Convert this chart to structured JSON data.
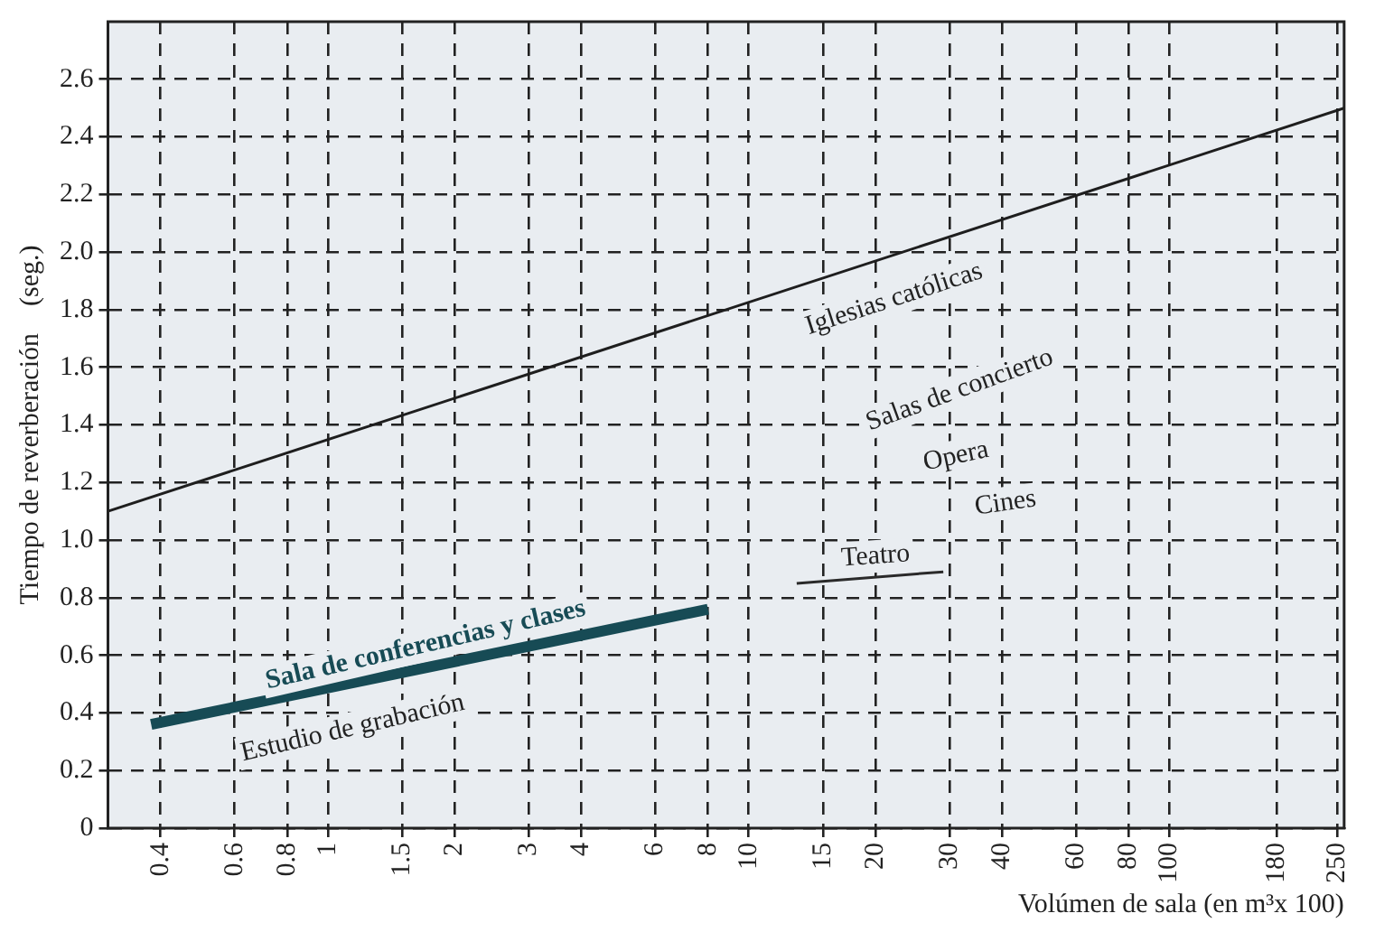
{
  "chart_data": {
    "type": "line",
    "xlabel": "Volúmen de sala (en m³x 100)",
    "ylabel": "Tiempo de reverberación    (seg.)",
    "log": "x",
    "xlim": [
      0.3,
      260
    ],
    "xticks": [
      0.4,
      0.6,
      0.8,
      1,
      1.5,
      2,
      3,
      4,
      6,
      8,
      10,
      15,
      20,
      30,
      40,
      60,
      80,
      100,
      180,
      250
    ],
    "ylim": [
      0,
      2.8
    ],
    "yticks": [
      0,
      0.2,
      0.4,
      0.6,
      0.8,
      {
        "value": 1,
        "label": "1.0"
      },
      1.2,
      1.4,
      1.6,
      1.8,
      {
        "value": 2,
        "label": "2.0"
      },
      2.2,
      2.4,
      2.6
    ],
    "grid": true,
    "legend": false,
    "marker": "none",
    "line_style": "solid",
    "series": [
      {
        "color": "#1e1e1e",
        "x": [
          0.3,
          260
        ],
        "values": [
          1.1,
          2.5
        ]
      },
      {
        "color": "#174b55",
        "x": [
          0.38,
          8
        ],
        "values": [
          0.36,
          0.76
        ]
      },
      {
        "color": "#2a2a2a",
        "x": [
          13,
          29
        ],
        "values": [
          0.85,
          0.89
        ]
      }
    ],
    "annotations": [
      "Iglesias católicas",
      "Salas de concierto",
      "Opera",
      "Cines",
      "Teatro",
      "Sala de conferencias y clases",
      "Estudio de grabación"
    ]
  }
}
